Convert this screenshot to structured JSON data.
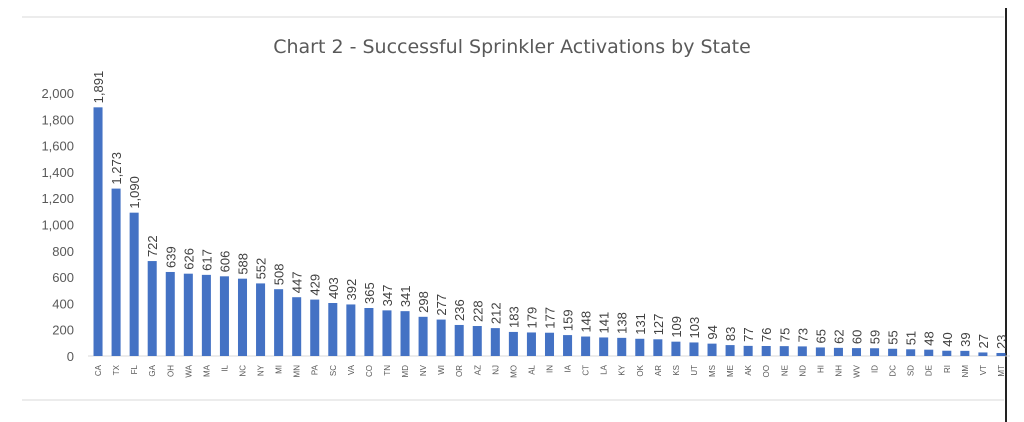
{
  "chart_data": {
    "type": "bar",
    "title": "Chart 2 - Successful Sprinkler Activations by State",
    "xlabel": "",
    "ylabel": "",
    "ylim": [
      0,
      2000
    ],
    "yticks": [
      0,
      200,
      400,
      600,
      800,
      1000,
      1200,
      1400,
      1600,
      1800,
      2000
    ],
    "ytick_labels": [
      "0",
      "200",
      "400",
      "600",
      "800",
      "1,000",
      "1,200",
      "1,400",
      "1,600",
      "1,800",
      "2,000"
    ],
    "grid": false,
    "bar_color": "#4472C4",
    "categories": [
      "CA",
      "TX",
      "FL",
      "GA",
      "OH",
      "WA",
      "MA",
      "IL",
      "NC",
      "NY",
      "MI",
      "MN",
      "PA",
      "SC",
      "VA",
      "CO",
      "TN",
      "MD",
      "NV",
      "WI",
      "OR",
      "AZ",
      "NJ",
      "MO",
      "AL",
      "IN",
      "IA",
      "CT",
      "LA",
      "KY",
      "OK",
      "AR",
      "KS",
      "UT",
      "MS",
      "ME",
      "AK",
      "OO",
      "NE",
      "ND",
      "HI",
      "NH",
      "WV",
      "ID",
      "DC",
      "SD",
      "DE",
      "RI",
      "NM",
      "VT",
      "MT"
    ],
    "values": [
      1891,
      1273,
      1090,
      722,
      639,
      626,
      617,
      606,
      588,
      552,
      508,
      447,
      429,
      403,
      392,
      365,
      347,
      341,
      298,
      277,
      236,
      228,
      212,
      183,
      179,
      177,
      159,
      148,
      141,
      138,
      131,
      127,
      109,
      103,
      94,
      83,
      77,
      76,
      75,
      73,
      65,
      62,
      60,
      59,
      55,
      51,
      48,
      40,
      39,
      27,
      23
    ],
    "value_labels": [
      "1,891",
      "1,273",
      "1,090",
      "722",
      "639",
      "626",
      "617",
      "606",
      "588",
      "552",
      "508",
      "447",
      "429",
      "403",
      "392",
      "365",
      "347",
      "341",
      "298",
      "277",
      "236",
      "228",
      "212",
      "183",
      "179",
      "177",
      "159",
      "148",
      "141",
      "138",
      "131",
      "127",
      "109",
      "103",
      "94",
      "83",
      "77",
      "76",
      "75",
      "73",
      "65",
      "62",
      "60",
      "59",
      "55",
      "51",
      "48",
      "40",
      "39",
      "27",
      "23"
    ]
  }
}
